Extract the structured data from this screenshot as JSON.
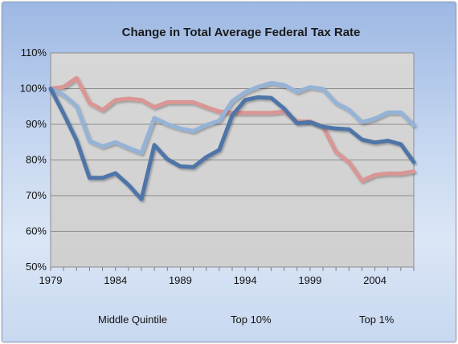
{
  "chart_data": {
    "type": "line",
    "title": "Change in Total Average Federal Tax Rate",
    "xlabel": "",
    "ylabel": "",
    "x": [
      1979,
      1980,
      1981,
      1982,
      1983,
      1984,
      1985,
      1986,
      1987,
      1988,
      1989,
      1990,
      1991,
      1992,
      1993,
      1994,
      1995,
      1996,
      1997,
      1998,
      1999,
      2000,
      2001,
      2002,
      2003,
      2004,
      2005,
      2006,
      2007
    ],
    "xlim": [
      1979,
      2007
    ],
    "x_ticks": [
      "1979",
      "1984",
      "1989",
      "1994",
      "1999",
      "2004"
    ],
    "ylim": [
      50,
      110
    ],
    "y_ticks": [
      "50%",
      "60%",
      "70%",
      "80%",
      "90%",
      "100%",
      "110%"
    ],
    "grid": "horizontal",
    "legend": "bottom",
    "series": [
      {
        "name": "Middle Quintile",
        "color": "#d99694",
        "values": [
          100,
          100.5,
          103,
          96,
          94,
          96.8,
          97.2,
          96.8,
          94.8,
          96.2,
          96.2,
          96.2,
          94.8,
          93.6,
          93.2,
          93.2,
          93.2,
          93.2,
          93.6,
          90.8,
          90.8,
          89.3,
          82.3,
          79.4,
          74.2,
          75.8,
          76.2,
          76.2,
          76.8
        ]
      },
      {
        "name": "Top 10%",
        "color": "#95b3d7",
        "values": [
          100,
          98.2,
          95.2,
          85.4,
          83.8,
          85,
          83.4,
          82,
          91.8,
          90,
          88.8,
          88.1,
          89.8,
          91,
          96.5,
          99,
          100.5,
          101.6,
          101,
          99.1,
          100.4,
          99.9,
          96,
          94.1,
          90.6,
          91.6,
          93.3,
          93.3,
          89.8
        ]
      },
      {
        "name": "Top 1%",
        "color": "#4f75a8",
        "values": [
          100,
          93,
          85.5,
          75,
          75,
          76.3,
          73,
          69,
          84.2,
          80.2,
          78.2,
          78,
          80.8,
          82.8,
          92.5,
          96.8,
          97.6,
          97.4,
          94.4,
          90.3,
          90.6,
          89.3,
          88.8,
          88.6,
          85.7,
          84.9,
          85.4,
          84.4,
          79.4
        ]
      }
    ]
  }
}
